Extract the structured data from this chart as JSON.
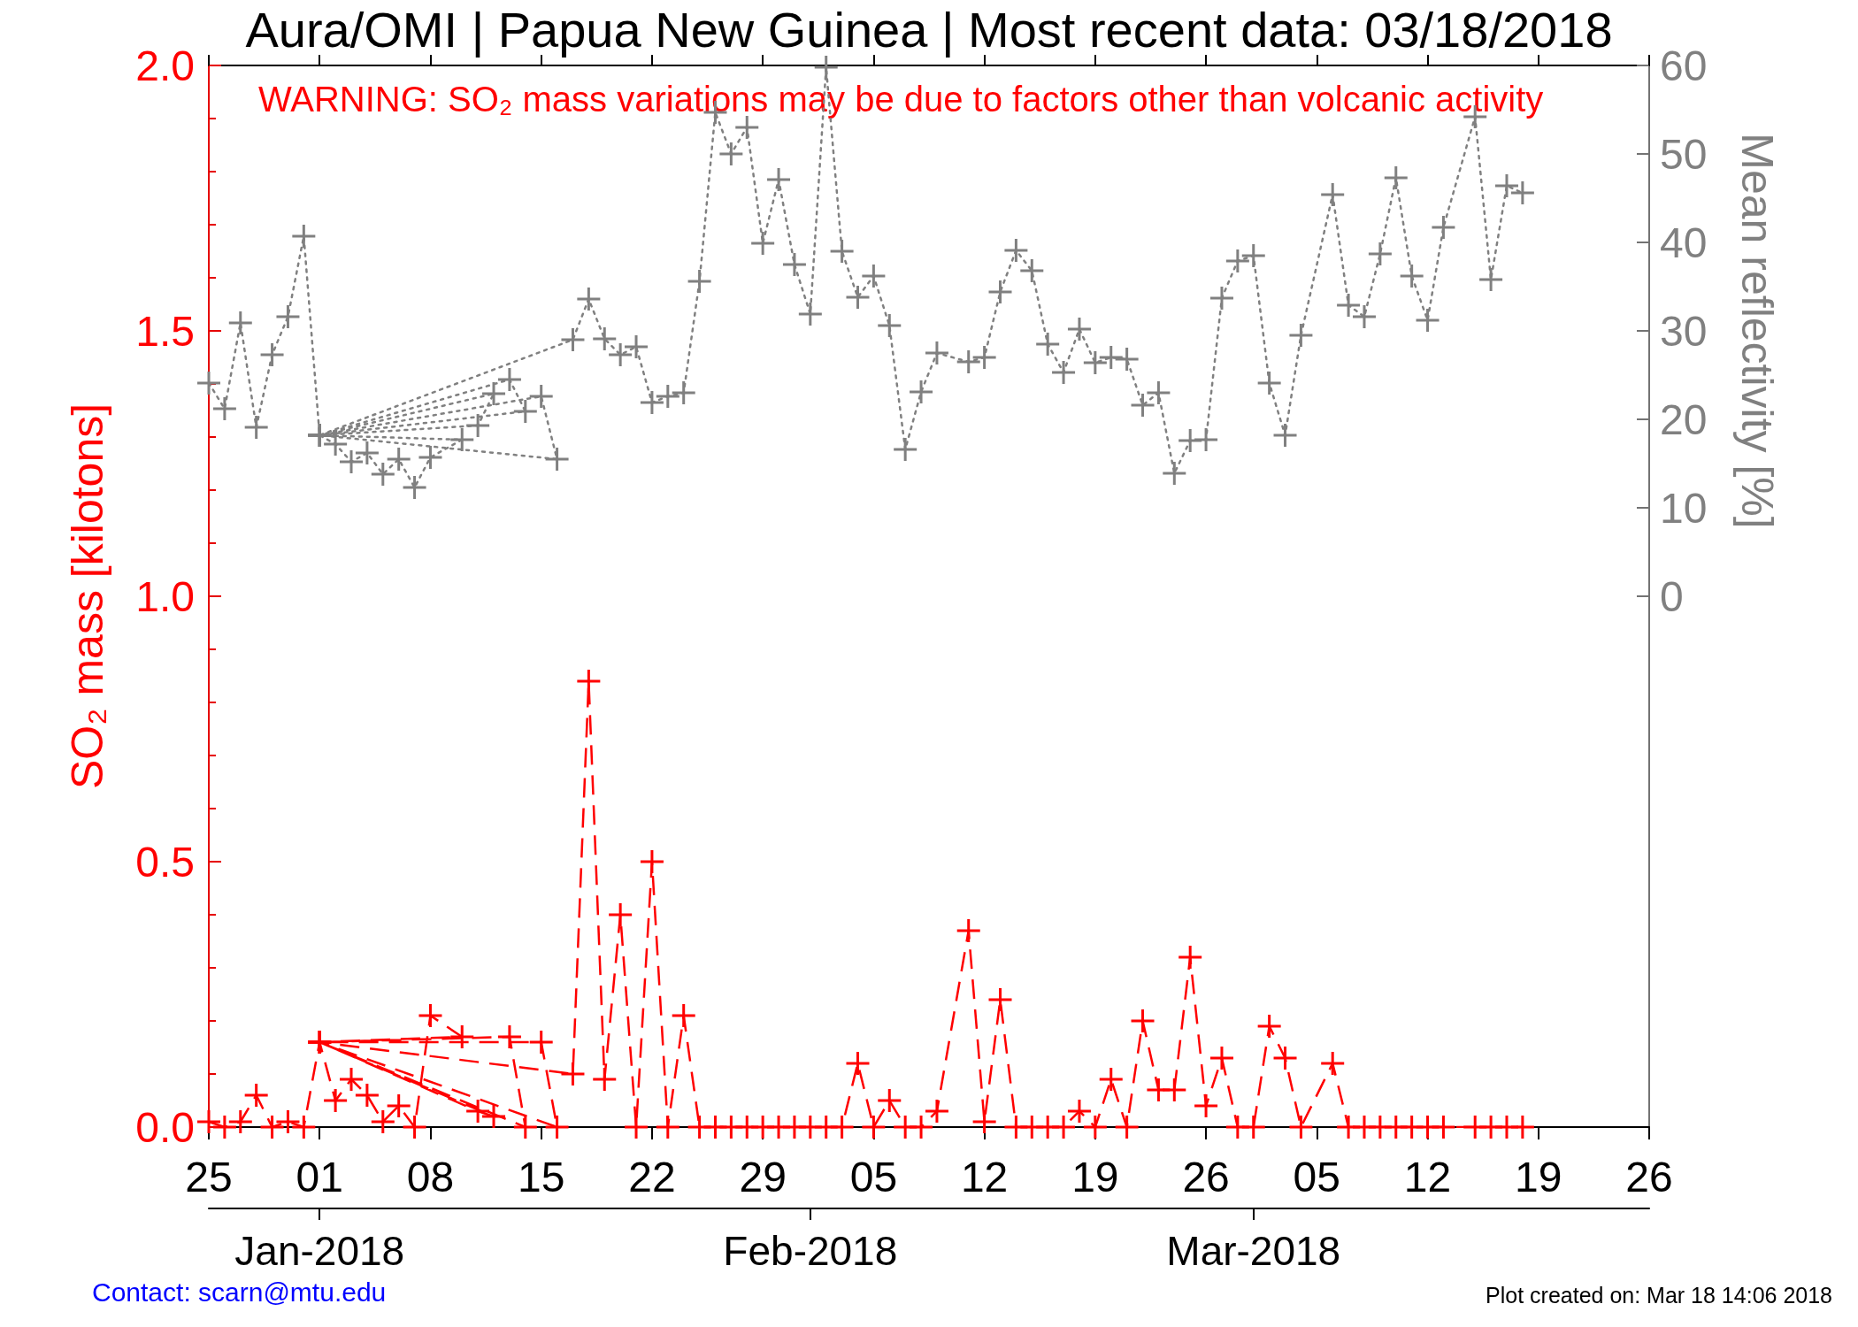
{
  "chart_data": {
    "type": "line",
    "title": "Aura/OMI | Papua New Guinea | Most recent data: 03/18/2018",
    "ylabel": "SO₂ mass [kilotons]",
    "y2label": "Mean reflectivity [%]",
    "annotations": [
      "WARNING: SO₂ mass variations may be due to factors other than volcanic activity",
      "Contact: scarn@mtu.edu",
      "Plot created on: Mar 18 14:06 2018"
    ],
    "x": [
      "2017-12-25",
      "2017-12-26",
      "2017-12-27",
      "2017-12-28",
      "2017-12-29",
      "2017-12-30",
      "2017-12-31",
      "2018-01-01",
      "2018-01-02",
      "2018-01-03",
      "2018-01-04",
      "2018-01-05",
      "2018-01-06",
      "2018-01-07",
      "2018-01-08",
      "2018-01-10",
      "2018-01-01",
      "2018-01-11",
      "2018-01-12",
      "2018-01-01",
      "2018-01-13",
      "2018-01-14",
      "2018-01-01",
      "2018-01-15",
      "2018-01-16",
      "2018-01-01",
      "2018-01-17",
      "2018-01-18",
      "2018-01-19",
      "2018-01-20",
      "2018-01-21",
      "2018-01-22",
      "2018-01-23",
      "2018-01-24",
      "2018-01-25",
      "2018-01-26",
      "2018-01-27",
      "2018-01-28",
      "2018-01-29",
      "2018-01-30",
      "2018-01-31",
      "2018-02-01",
      "2018-02-02",
      "2018-02-03",
      "2018-02-04",
      "2018-02-05",
      "2018-02-06",
      "2018-02-07",
      "2018-02-08",
      "2018-02-09",
      "2018-02-11",
      "2018-02-12",
      "2018-02-13",
      "2018-02-14",
      "2018-02-15",
      "2018-02-16",
      "2018-02-17",
      "2018-02-18",
      "2018-02-19",
      "2018-02-20",
      "2018-02-21",
      "2018-02-22",
      "2018-02-23",
      "2018-02-24",
      "2018-02-25",
      "2018-02-26",
      "2018-02-27",
      "2018-02-28",
      "2018-03-01",
      "2018-03-02",
      "2018-03-03",
      "2018-03-04",
      "2018-03-06",
      "2018-03-07",
      "2018-03-08",
      "2018-03-09",
      "2018-03-10",
      "2018-03-11",
      "2018-03-12",
      "2018-03-13",
      "2018-03-15",
      "2018-03-16",
      "2018-03-17",
      "2018-03-18"
    ],
    "series": [
      {
        "color": "#808080",
        "axis": "y2",
        "line_style": "dotted",
        "values": [
          24.1,
          21.2,
          30.9,
          19.1,
          27.3,
          31.6,
          40.7,
          18.2,
          17.2,
          15.2,
          16.2,
          13.8,
          15.5,
          12.3,
          15.7,
          17.7,
          18.2,
          19.3,
          22.9,
          18.2,
          24.5,
          20.9,
          18.2,
          22.6,
          15.5,
          18.2,
          29.0,
          33.6,
          29.1,
          27.3,
          28.2,
          21.9,
          22.6,
          23.0,
          35.6,
          54.7,
          50.0,
          53.0,
          39.9,
          47.1,
          37.5,
          31.9,
          59.8,
          39.0,
          33.8,
          36.2,
          30.6,
          16.6,
          23.1,
          27.5,
          26.5,
          27.0,
          34.4,
          39.1,
          36.8,
          28.5,
          25.3,
          30.2,
          26.4,
          27.0,
          26.8,
          21.6,
          23.0,
          13.9,
          17.6,
          17.7,
          33.7,
          37.9,
          38.5,
          24.1,
          18.2,
          29.5,
          45.4,
          32.9,
          31.6,
          38.7,
          47.3,
          36.2,
          31.2,
          41.7,
          54.2,
          35.8,
          46.4,
          45.6
        ]
      },
      {
        "color": "#ff0000",
        "axis": "y",
        "line_style": "dashed",
        "values": [
          0.01,
          0,
          0.01,
          0.06,
          0,
          0.01,
          0,
          0.16,
          0.05,
          0.09,
          0.06,
          0.01,
          0.04,
          0,
          0.21,
          0.17,
          0.16,
          0.03,
          0.02,
          0.16,
          0.17,
          0,
          0.16,
          0.16,
          0,
          0.16,
          0.1,
          0.84,
          0.09,
          0.4,
          0,
          0.5,
          0,
          0.21,
          0,
          0,
          0,
          0,
          0,
          0,
          0,
          0,
          0,
          0,
          0.12,
          0,
          0.05,
          0,
          0,
          0.03,
          0.37,
          0.01,
          0.24,
          0,
          0,
          0,
          0,
          0.03,
          0,
          0.09,
          0,
          0.2,
          0.07,
          0.07,
          0.32,
          0.04,
          0.13,
          0,
          0,
          0.19,
          0.13,
          0,
          0.12,
          0,
          0,
          0,
          0,
          0,
          0,
          0,
          0,
          0,
          0,
          0
        ]
      }
    ],
    "xlim": [
      "2017-12-25",
      "2018-03-26"
    ],
    "xticks": [
      {
        "value": "2017-12-25",
        "label": "25"
      },
      {
        "value": "2018-01-01",
        "label": "01"
      },
      {
        "value": "2018-01-08",
        "label": "08"
      },
      {
        "value": "2018-01-15",
        "label": "15"
      },
      {
        "value": "2018-01-22",
        "label": "22"
      },
      {
        "value": "2018-01-29",
        "label": "29"
      },
      {
        "value": "2018-02-05",
        "label": "05"
      },
      {
        "value": "2018-02-12",
        "label": "12"
      },
      {
        "value": "2018-02-19",
        "label": "19"
      },
      {
        "value": "2018-02-26",
        "label": "26"
      },
      {
        "value": "2018-03-05",
        "label": "05"
      },
      {
        "value": "2018-03-12",
        "label": "12"
      },
      {
        "value": "2018-03-19",
        "label": "19"
      },
      {
        "value": "2018-03-26",
        "label": "26"
      }
    ],
    "x2lim": [
      "2017-12-25",
      "2018-03-26"
    ],
    "x2ticks": [
      {
        "value": "2018-01-01",
        "label": "Jan-2018"
      },
      {
        "value": "2018-02-01",
        "label": "Feb-2018"
      },
      {
        "value": "2018-03-01",
        "label": "Mar-2018"
      }
    ],
    "ylim": [
      0,
      2
    ],
    "yticks": [
      {
        "value": 0,
        "label": "0.0"
      },
      {
        "value": 0.1,
        "label": null
      },
      {
        "value": 0.2,
        "label": null
      },
      {
        "value": 0.3,
        "label": null
      },
      {
        "value": 0.4,
        "label": null
      },
      {
        "value": 0.5,
        "label": "0.5"
      },
      {
        "value": 0.6,
        "label": null
      },
      {
        "value": 0.7,
        "label": null
      },
      {
        "value": 0.8,
        "label": null
      },
      {
        "value": 0.9,
        "label": null
      },
      {
        "value": 1,
        "label": "1.0"
      },
      {
        "value": 1.1,
        "label": null
      },
      {
        "value": 1.2,
        "label": null
      },
      {
        "value": 1.3,
        "label": null
      },
      {
        "value": 1.4,
        "label": null
      },
      {
        "value": 1.5,
        "label": "1.5"
      },
      {
        "value": 1.6,
        "label": null
      },
      {
        "value": 1.7,
        "label": null
      },
      {
        "value": 1.8,
        "label": null
      },
      {
        "value": 1.9,
        "label": null
      },
      {
        "value": 2,
        "label": "2.0"
      }
    ],
    "y2lim": [
      -60,
      60
    ],
    "y2ticks": [
      0,
      10,
      20,
      30,
      40,
      50,
      60
    ],
    "marker": "cross",
    "grid": false
  }
}
